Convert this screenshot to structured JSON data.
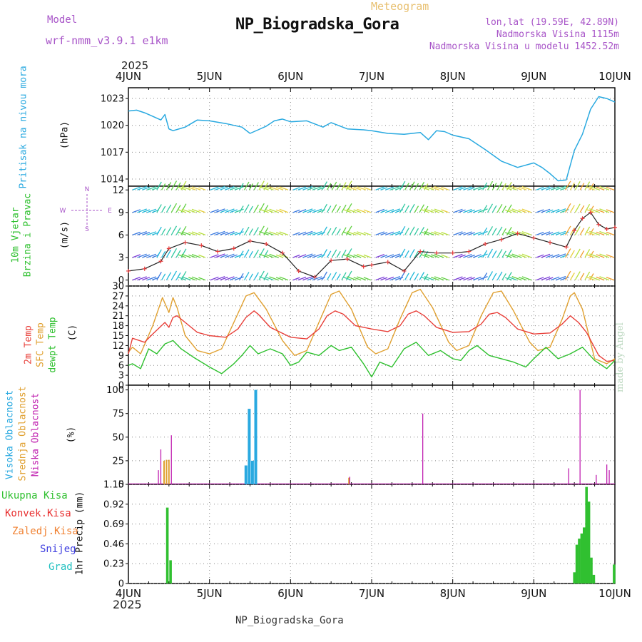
{
  "header": {
    "model_label": "Model",
    "model_name": "wrf-nmm_v3.9.1 e1km",
    "meteogram_label": "Meteogram",
    "station_title": "NP_Biogradska_Gora",
    "lonlat": "lon,lat (19.59E, 42.89N)",
    "elevation": "Nadmorska Visina 1115m",
    "model_elevation": "Nadmorska Visina u modelu 1452.52m",
    "year_top": "2025",
    "year_bottom": "2025",
    "footer_station": "NP_Biogradska_Gora",
    "watermark": "made by Angel"
  },
  "colors": {
    "pressure": "#29a9e0",
    "temp2m": "#e8403a",
    "sfc": "#e0a030",
    "dewpt": "#2ec02e",
    "high_cloud": "#29a9e0",
    "mid_cloud": "#e0a030",
    "low_cloud": "#c020b0",
    "precip_total": "#30c030",
    "precip_conv": "#e83030",
    "precip_frz": "#f08030",
    "precip_snow": "#4040e0",
    "precip_hail": "#20c0c0"
  },
  "chart_data": [
    {
      "type": "line",
      "panel": "pressure",
      "ylabel_outer": "Pritisak na nivou mora",
      "ylabel_inner": "(hPa)",
      "x_ticks": [
        "4JUN",
        "5JUN",
        "6JUN",
        "7JUN",
        "8JUN",
        "9JUN",
        "10JUN"
      ],
      "yticks": [
        1014,
        1017,
        1020,
        1023
      ],
      "ylim": [
        1013.2,
        1024.2
      ],
      "grid": true,
      "series": [
        {
          "name": "Pritisak na nivou mora",
          "x": [
            0,
            0.1,
            0.2,
            0.3,
            0.4,
            0.45,
            0.5,
            0.55,
            0.7,
            0.85,
            1.0,
            1.2,
            1.4,
            1.5,
            1.55,
            1.6,
            1.7,
            1.8,
            1.9,
            2.0,
            2.2,
            2.4,
            2.5,
            2.7,
            2.9,
            3.0,
            3.2,
            3.4,
            3.6,
            3.7,
            3.8,
            3.9,
            4.0,
            4.2,
            4.4,
            4.6,
            4.8,
            5.0,
            5.1,
            5.2,
            5.3,
            5.4,
            5.5,
            5.6,
            5.7,
            5.8,
            5.9,
            6.0
          ],
          "values": [
            1021.6,
            1021.7,
            1021.4,
            1021.0,
            1020.6,
            1021.2,
            1019.6,
            1019.4,
            1019.8,
            1020.6,
            1020.5,
            1020.2,
            1019.8,
            1019.1,
            1019.3,
            1019.5,
            1019.9,
            1020.5,
            1020.7,
            1020.4,
            1020.5,
            1019.8,
            1020.3,
            1019.6,
            1019.5,
            1019.4,
            1019.1,
            1019.0,
            1019.2,
            1018.4,
            1019.4,
            1019.3,
            1018.9,
            1018.5,
            1017.3,
            1016.0,
            1015.3,
            1015.8,
            1015.3,
            1014.6,
            1013.8,
            1013.9,
            1017.2,
            1019.0,
            1021.8,
            1023.2,
            1023.0,
            1022.6
          ]
        }
      ]
    },
    {
      "type": "line",
      "panel": "wind",
      "ylabel_outer": "10m Vjetar Brzina i Pravac",
      "ylabel_inner": "(m/s)",
      "compass": [
        "N",
        "E",
        "W",
        "S"
      ],
      "yticks": [
        0,
        3,
        6,
        9,
        12
      ],
      "ylim": [
        -0.8,
        12.5
      ],
      "grid": true,
      "series": [
        {
          "name": "wind speed",
          "x": [
            0,
            0.2,
            0.4,
            0.5,
            0.7,
            0.9,
            1.1,
            1.3,
            1.5,
            1.7,
            1.9,
            2.1,
            2.3,
            2.5,
            2.7,
            2.9,
            3.0,
            3.2,
            3.4,
            3.6,
            3.8,
            4.0,
            4.2,
            4.4,
            4.6,
            4.8,
            5.0,
            5.2,
            5.4,
            5.5,
            5.6,
            5.7,
            5.8,
            5.9,
            6.0
          ],
          "values": [
            1.2,
            1.5,
            2.5,
            4.2,
            5.0,
            4.6,
            3.8,
            4.2,
            5.2,
            4.8,
            3.6,
            1.2,
            0.4,
            2.6,
            2.8,
            1.8,
            2.0,
            2.4,
            1.2,
            3.8,
            3.6,
            3.6,
            3.8,
            4.8,
            5.4,
            6.2,
            5.6,
            5.0,
            4.4,
            6.6,
            8.2,
            9.0,
            7.4,
            6.8,
            7.0
          ]
        }
      ]
    },
    {
      "type": "line",
      "panel": "temperature",
      "ylabel_outer": [
        "2m Temp",
        "SFC Temp",
        "dewpt Temp"
      ],
      "ylabel_inner": "(C)",
      "yticks": [
        0,
        3,
        6,
        9,
        12,
        15,
        18,
        21,
        24,
        27,
        30
      ],
      "ylim": [
        0,
        30
      ],
      "grid": true,
      "series": [
        {
          "name": "2m Temp",
          "x": [
            0,
            0.05,
            0.2,
            0.3,
            0.45,
            0.5,
            0.55,
            0.6,
            0.7,
            0.85,
            1.0,
            1.2,
            1.35,
            1.45,
            1.55,
            1.6,
            1.75,
            2.0,
            2.2,
            2.35,
            2.45,
            2.55,
            2.65,
            2.8,
            3.0,
            3.2,
            3.35,
            3.45,
            3.55,
            3.65,
            3.8,
            4.0,
            4.2,
            4.35,
            4.45,
            4.55,
            4.65,
            4.8,
            5.0,
            5.2,
            5.35,
            5.45,
            5.55,
            5.65,
            5.8,
            5.9,
            6.0
          ],
          "values": [
            9.5,
            14.2,
            13.0,
            15.5,
            19.0,
            17.5,
            20.5,
            21.0,
            19.0,
            16.0,
            15.0,
            14.5,
            17.0,
            20.5,
            22.5,
            21.5,
            17.5,
            14.5,
            14.0,
            17.0,
            21.0,
            22.5,
            21.5,
            18.0,
            17.0,
            16.2,
            18.0,
            21.5,
            22.5,
            21.0,
            17.5,
            16.0,
            16.2,
            18.5,
            21.5,
            22.0,
            20.5,
            17.0,
            15.5,
            15.8,
            18.5,
            21.0,
            19.0,
            16.0,
            9.0,
            7.2,
            7.5
          ]
        },
        {
          "name": "SFC Temp",
          "x": [
            0,
            0.05,
            0.15,
            0.3,
            0.42,
            0.5,
            0.55,
            0.6,
            0.7,
            0.85,
            1.0,
            1.15,
            1.3,
            1.45,
            1.55,
            1.7,
            1.9,
            2.05,
            2.2,
            2.35,
            2.5,
            2.6,
            2.75,
            2.95,
            3.05,
            3.2,
            3.35,
            3.5,
            3.6,
            3.75,
            3.95,
            4.05,
            4.2,
            4.35,
            4.5,
            4.6,
            4.75,
            4.95,
            5.05,
            5.2,
            5.35,
            5.45,
            5.5,
            5.6,
            5.75,
            5.9,
            6.0
          ],
          "values": [
            10.0,
            11.5,
            9.5,
            18.0,
            26.5,
            22.0,
            26.5,
            23.5,
            15.0,
            10.5,
            9.5,
            11.0,
            19.0,
            27.0,
            28.0,
            23.0,
            13.5,
            9.0,
            10.5,
            19.0,
            27.5,
            28.5,
            23.0,
            11.5,
            9.5,
            11.0,
            20.0,
            28.0,
            29.0,
            23.5,
            13.0,
            10.5,
            12.0,
            21.0,
            28.0,
            28.5,
            22.5,
            13.0,
            10.5,
            11.5,
            20.0,
            27.0,
            28.0,
            23.0,
            8.0,
            6.5,
            8.0
          ]
        },
        {
          "name": "dewpt Temp",
          "x": [
            0,
            0.05,
            0.15,
            0.25,
            0.35,
            0.45,
            0.55,
            0.65,
            0.8,
            1.0,
            1.15,
            1.3,
            1.4,
            1.5,
            1.6,
            1.75,
            1.9,
            2.0,
            2.1,
            2.2,
            2.35,
            2.5,
            2.6,
            2.75,
            2.9,
            3.0,
            3.1,
            3.25,
            3.4,
            3.55,
            3.7,
            3.85,
            4.0,
            4.1,
            4.2,
            4.3,
            4.45,
            4.6,
            4.75,
            4.9,
            5.0,
            5.15,
            5.3,
            5.45,
            5.6,
            5.75,
            5.9,
            6.0
          ],
          "values": [
            6.0,
            6.5,
            5.0,
            11.0,
            9.5,
            12.5,
            13.5,
            11.0,
            8.5,
            5.5,
            3.5,
            6.5,
            9.0,
            12.0,
            9.5,
            11.0,
            9.5,
            6.0,
            7.0,
            10.0,
            9.0,
            12.0,
            10.5,
            11.5,
            6.5,
            2.5,
            7.0,
            5.5,
            11.0,
            13.0,
            9.0,
            10.5,
            8.0,
            7.5,
            10.5,
            12.0,
            9.0,
            8.0,
            7.0,
            5.5,
            8.0,
            11.5,
            8.0,
            9.5,
            11.5,
            7.5,
            5.0,
            7.5
          ]
        }
      ]
    },
    {
      "type": "bar",
      "panel": "clouds",
      "ylabel_outer": [
        "Visoka Oblacnost",
        "Srednja Oblacnost",
        "Niska Oblacnost"
      ],
      "ylabel_inner": "(%)",
      "yticks": [
        0,
        25,
        50,
        75,
        100
      ],
      "ylim": [
        0,
        105
      ],
      "grid": true,
      "series": [
        {
          "name": "Visoka Oblacnost",
          "x": [
            1.45,
            1.49,
            1.53,
            1.57
          ],
          "values": [
            20,
            80,
            25,
            100
          ]
        },
        {
          "name": "Srednja Oblacnost",
          "x": [
            0.44,
            0.47,
            0.5,
            2.72
          ],
          "values": [
            25,
            26,
            26,
            7
          ]
        },
        {
          "name": "Niska Oblacnost",
          "x": [
            0.37,
            0.4,
            0.53,
            2.73,
            3.63,
            5.43,
            5.57,
            5.77,
            5.9,
            5.93
          ],
          "values": [
            15,
            37,
            52,
            8,
            75,
            17,
            100,
            10,
            21,
            15
          ]
        }
      ]
    },
    {
      "type": "bar",
      "panel": "precipitation",
      "ylabel_outer": [
        "Ukupna Kisa",
        "Konvek.Kisa",
        "Zaledj.Kisa",
        "Snijeg",
        "Grad"
      ],
      "ylabel_inner": "1hr Precip (mm)",
      "yticks": [
        0,
        0.23,
        0.46,
        0.69,
        0.92,
        1.15
      ],
      "ylim": [
        0,
        1.15
      ],
      "grid": true,
      "series": [
        {
          "name": "Ukupna Kisa",
          "x": [
            0.48,
            0.52,
            5.5,
            5.53,
            5.56,
            5.59,
            5.62,
            5.65,
            5.68,
            5.71,
            5.74,
            5.99
          ],
          "values": [
            0.88,
            0.27,
            0.13,
            0.45,
            0.52,
            0.58,
            0.65,
            1.12,
            0.95,
            0.3,
            0.1,
            0.22
          ]
        }
      ]
    }
  ]
}
